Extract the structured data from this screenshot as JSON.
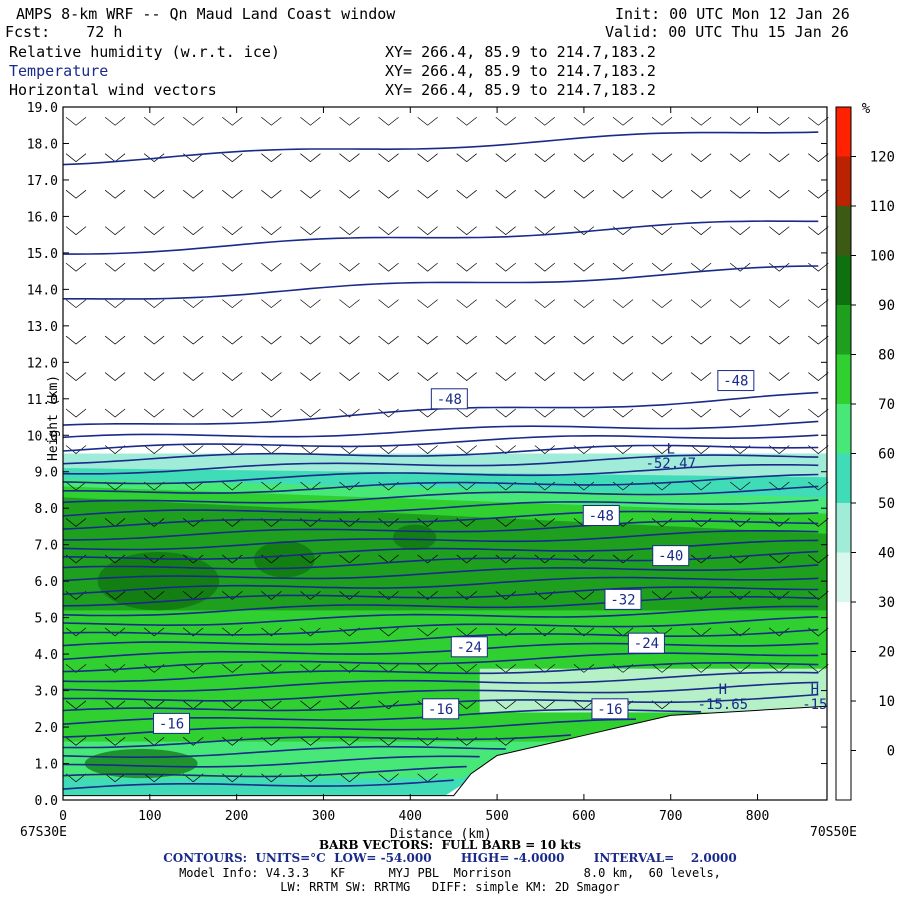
{
  "header": {
    "title": "AMPS 8-km WRF -- Qn Maud Land Coast window",
    "init": "Init: 00 UTC Mon 12 Jan 26",
    "fcst": "Fcst:    72 h",
    "valid": "Valid: 00 UTC Thu 15 Jan 26",
    "field1": "Relative humidity (w.r.t. ice)",
    "field2": "Temperature",
    "field3": "Horizontal wind vectors",
    "xy1": "XY= 266.4, 85.9 to 214.7,183.2",
    "xy2": "XY= 266.4, 85.9 to 214.7,183.2",
    "xy3": "XY= 266.4, 85.9 to 214.7,183.2"
  },
  "chart_data": {
    "type": "heatmap",
    "xlabel": "Distance (km)",
    "ylabel": "Height (km)",
    "xlim": [
      0,
      880
    ],
    "ylim": [
      0,
      19
    ],
    "x_ticks": [
      "0",
      "100",
      "200",
      "300",
      "400",
      "500",
      "600",
      "700",
      "800"
    ],
    "y_ticks": [
      "0.0",
      "1.0",
      "2.0",
      "3.0",
      "4.0",
      "5.0",
      "6.0",
      "7.0",
      "8.0",
      "9.0",
      "10.0",
      "11.0",
      "12.0",
      "13.0",
      "14.0",
      "15.0",
      "16.0",
      "17.0",
      "18.0",
      "19.0"
    ],
    "start_label": "67S30E",
    "end_label": "70S50E",
    "colorbar": {
      "unit": "%",
      "tick_labels": [
        "0",
        "10",
        "20",
        "30",
        "40",
        "50",
        "60",
        "70",
        "80",
        "90",
        "100",
        "110",
        "120"
      ],
      "colors": [
        "#ffffff",
        "#ffffff",
        "#ffffff",
        "#d8f8ee",
        "#a0ecd8",
        "#40dcb8",
        "#48e878",
        "#30d030",
        "#1ea01e",
        "#0e700e",
        "#3c5a14",
        "#bb2200",
        "#ff2200"
      ]
    },
    "contour_labels": [
      {
        "text": "-48",
        "x": 445,
        "y": 11.0
      },
      {
        "text": "-48",
        "x": 775,
        "y": 11.5
      },
      {
        "text": "-48",
        "x": 620,
        "y": 7.8
      },
      {
        "text": "-40",
        "x": 700,
        "y": 6.7
      },
      {
        "text": "-32",
        "x": 645,
        "y": 5.5
      },
      {
        "text": "-24",
        "x": 468,
        "y": 4.2
      },
      {
        "text": "-24",
        "x": 672,
        "y": 4.3
      },
      {
        "text": "-16",
        "x": 125,
        "y": 2.1
      },
      {
        "text": "-16",
        "x": 435,
        "y": 2.5
      },
      {
        "text": "-16",
        "x": 630,
        "y": 2.5
      }
    ],
    "markers": [
      {
        "text": "L",
        "x": 700,
        "y": 9.5
      },
      {
        "text": "-52.47",
        "x": 700,
        "y": 9.1
      },
      {
        "text": "H",
        "x": 760,
        "y": 2.9
      },
      {
        "text": "-15.65",
        "x": 760,
        "y": 2.5
      },
      {
        "text": "H",
        "x": 866,
        "y": 2.9
      },
      {
        "text": "-15",
        "x": 866,
        "y": 2.5
      }
    ]
  },
  "footer": {
    "barb": "BARB VECTORS:  FULL BARB = 10 kts",
    "contours": "CONTOURS:  UNITS=°C  LOW= -54.000       HIGH= -4.0000       INTERVAL=    2.0000",
    "model_info": "Model Info: V4.3.3   KF      MYJ PBL  Morrison          8.0 km,  60 levels,",
    "physics": "LW: RRTM SW: RRTMG   DIFF: simple KM: 2D Smagor"
  }
}
